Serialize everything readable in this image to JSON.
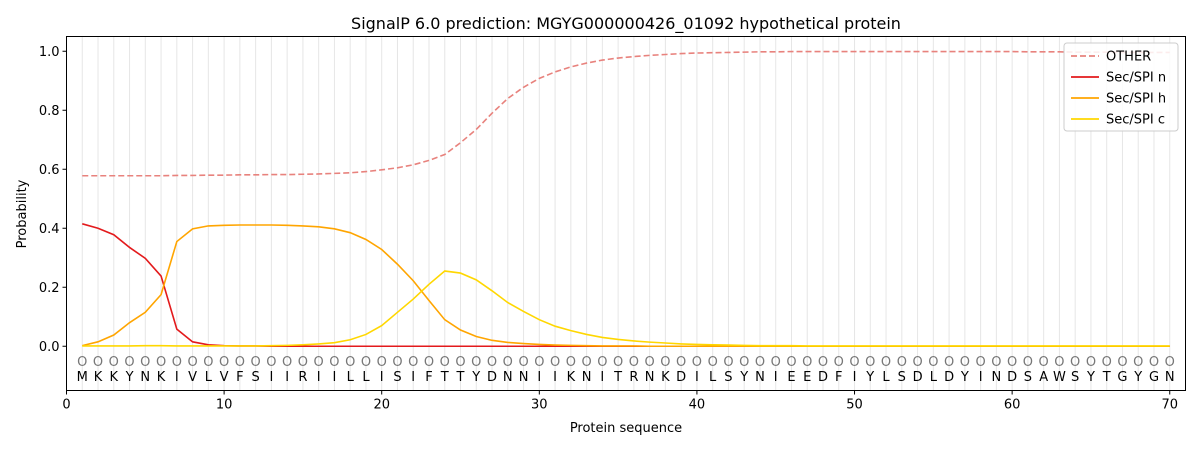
{
  "chart_data": {
    "type": "line",
    "title": "SignalP 6.0 prediction: MGYG000000426_01092 hypothetical protein",
    "xlabel": "Protein sequence",
    "ylabel": "Probability",
    "xlim": [
      0,
      71
    ],
    "ylim": [
      -0.15,
      1.05
    ],
    "xticks": [
      0,
      10,
      20,
      30,
      40,
      50,
      60,
      70
    ],
    "yticks": [
      0.0,
      0.2,
      0.4,
      0.6,
      0.8,
      1.0
    ],
    "grid": "vertical lines at each residue",
    "legend_position": "top-right",
    "sequence": [
      "M",
      "K",
      "K",
      "Y",
      "N",
      "K",
      "I",
      "V",
      "L",
      "V",
      "F",
      "S",
      "I",
      "I",
      "R",
      "I",
      "I",
      "L",
      "L",
      "I",
      "S",
      "I",
      "F",
      "T",
      "T",
      "Y",
      "D",
      "N",
      "N",
      "I",
      "I",
      "K",
      "N",
      "I",
      "T",
      "R",
      "N",
      "K",
      "D",
      "I",
      "L",
      "S",
      "Y",
      "N",
      "I",
      "E",
      "E",
      "D",
      "F",
      "I",
      "Y",
      "L",
      "S",
      "D",
      "L",
      "D",
      "Y",
      "I",
      "N",
      "D",
      "S",
      "A",
      "W",
      "S",
      "Y",
      "T",
      "G",
      "Y",
      "G",
      "N"
    ],
    "region_marker": "O",
    "series": [
      {
        "name": "OTHER",
        "color": "#e8827d",
        "style": "dashed",
        "values": [
          0.578,
          0.578,
          0.578,
          0.578,
          0.578,
          0.578,
          0.579,
          0.579,
          0.58,
          0.58,
          0.581,
          0.581,
          0.582,
          0.582,
          0.583,
          0.584,
          0.586,
          0.588,
          0.592,
          0.598,
          0.605,
          0.615,
          0.63,
          0.65,
          0.69,
          0.735,
          0.79,
          0.84,
          0.878,
          0.908,
          0.93,
          0.947,
          0.96,
          0.97,
          0.977,
          0.982,
          0.986,
          0.989,
          0.992,
          0.994,
          0.995,
          0.996,
          0.997,
          0.998,
          0.998,
          0.999,
          0.999,
          0.999,
          0.999,
          0.999,
          0.999,
          0.999,
          0.999,
          0.999,
          0.999,
          0.999,
          0.999,
          0.999,
          0.999,
          0.999,
          0.998,
          0.998,
          0.998,
          0.997,
          0.997,
          0.997,
          0.996,
          0.996,
          0.996,
          0.996
        ]
      },
      {
        "name": "Sec/SPI n",
        "color": "#e31a1c",
        "style": "solid",
        "values": [
          0.415,
          0.4,
          0.378,
          0.335,
          0.298,
          0.238,
          0.058,
          0.015,
          0.005,
          0.002,
          0.001,
          0.001,
          0,
          0,
          0,
          0,
          0,
          0,
          0,
          0,
          0,
          0,
          0,
          0,
          0,
          0,
          0,
          0,
          0,
          0,
          0,
          0,
          0,
          0,
          0,
          0,
          0,
          0,
          0,
          0,
          0,
          0,
          0,
          0,
          0,
          0,
          0,
          0,
          0,
          0,
          0,
          0,
          0,
          0,
          0,
          0,
          0,
          0,
          0,
          0,
          0,
          0,
          0,
          0,
          0,
          0,
          0,
          0,
          0,
          0
        ]
      },
      {
        "name": "Sec/SPI h",
        "color": "#ffa500",
        "style": "solid",
        "values": [
          0.002,
          0.015,
          0.038,
          0.08,
          0.115,
          0.175,
          0.355,
          0.398,
          0.408,
          0.41,
          0.411,
          0.411,
          0.411,
          0.41,
          0.408,
          0.405,
          0.398,
          0.385,
          0.362,
          0.328,
          0.278,
          0.222,
          0.155,
          0.09,
          0.055,
          0.033,
          0.02,
          0.013,
          0.009,
          0.006,
          0.004,
          0.003,
          0.002,
          0.001,
          0.001,
          0.001,
          0,
          0,
          0,
          0,
          0,
          0,
          0,
          0,
          0,
          0,
          0,
          0,
          0,
          0,
          0,
          0,
          0,
          0,
          0,
          0,
          0,
          0,
          0,
          0,
          0,
          0,
          0,
          0,
          0,
          0,
          0,
          0,
          0,
          0
        ]
      },
      {
        "name": "Sec/SPI c",
        "color": "#ffd700",
        "style": "solid",
        "values": [
          0.001,
          0.001,
          0.001,
          0.001,
          0.002,
          0.002,
          0.001,
          0.001,
          0.001,
          0.001,
          0.001,
          0.001,
          0.002,
          0.003,
          0.005,
          0.008,
          0.012,
          0.022,
          0.04,
          0.07,
          0.115,
          0.16,
          0.21,
          0.255,
          0.248,
          0.225,
          0.188,
          0.148,
          0.118,
          0.09,
          0.068,
          0.053,
          0.04,
          0.03,
          0.023,
          0.018,
          0.014,
          0.011,
          0.008,
          0.006,
          0.005,
          0.004,
          0.003,
          0.002,
          0.002,
          0.002,
          0.001,
          0.001,
          0.001,
          0.001,
          0.001,
          0.001,
          0.001,
          0.001,
          0.001,
          0.001,
          0.001,
          0.001,
          0.001,
          0.001,
          0.001,
          0.001,
          0.001,
          0.001,
          0.001,
          0.001,
          0.001,
          0.001,
          0.001,
          0.001
        ]
      }
    ]
  }
}
